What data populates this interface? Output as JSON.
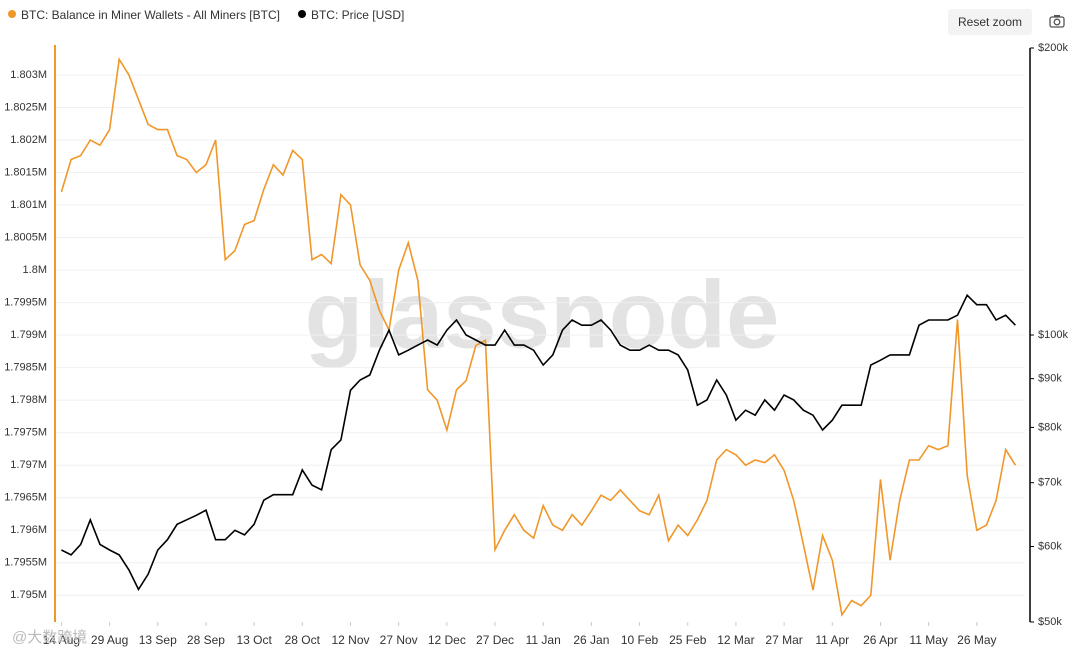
{
  "chart_data": {
    "type": "line",
    "legend": "top-left",
    "watermark": "glassnode",
    "overlay_text": "@大数跨境",
    "button": "Reset zoom",
    "x": [
      0,
      3,
      6,
      9,
      12,
      15,
      18,
      21,
      24,
      27,
      30,
      33,
      36,
      39,
      42,
      45,
      48,
      51,
      54,
      57,
      60,
      63,
      66,
      69,
      72,
      75,
      78,
      81,
      84,
      87,
      90,
      93,
      96,
      99,
      102,
      105,
      108,
      111,
      114,
      117,
      120,
      123,
      126,
      129,
      132,
      135,
      138,
      141,
      144,
      147,
      150,
      153,
      156,
      159,
      162,
      165,
      168,
      171,
      174,
      177,
      180,
      183,
      186,
      189,
      192,
      195,
      198,
      201,
      204,
      207,
      210,
      213,
      216,
      219,
      222,
      225,
      228,
      231,
      234,
      237,
      240,
      243,
      246,
      249,
      252,
      255,
      258,
      261,
      264,
      267,
      270,
      273,
      276,
      279,
      282,
      285,
      288,
      291,
      294,
      297
    ],
    "xlim": [
      -2,
      300
    ],
    "xticks": [
      {
        "value": 0,
        "label": "14 Aug"
      },
      {
        "value": 15,
        "label": "29 Aug"
      },
      {
        "value": 30,
        "label": "13 Sep"
      },
      {
        "value": 45,
        "label": "28 Sep"
      },
      {
        "value": 60,
        "label": "13 Oct"
      },
      {
        "value": 75,
        "label": "28 Oct"
      },
      {
        "value": 90,
        "label": "12 Nov"
      },
      {
        "value": 105,
        "label": "27 Nov"
      },
      {
        "value": 120,
        "label": "12 Dec"
      },
      {
        "value": 135,
        "label": "27 Dec"
      },
      {
        "value": 150,
        "label": "11 Jan"
      },
      {
        "value": 165,
        "label": "26 Jan"
      },
      {
        "value": 180,
        "label": "10 Feb"
      },
      {
        "value": 195,
        "label": "25 Feb"
      },
      {
        "value": 210,
        "label": "12 Mar"
      },
      {
        "value": 225,
        "label": "27 Mar"
      },
      {
        "value": 240,
        "label": "11 Apr"
      },
      {
        "value": 255,
        "label": "26 Apr"
      },
      {
        "value": 270,
        "label": "11 May"
      },
      {
        "value": 285,
        "label": "26 May"
      }
    ],
    "ylim": [
      1794590,
      1803460
    ],
    "yticks": [
      {
        "value": 1795000,
        "label": "1.795M"
      },
      {
        "value": 1795500,
        "label": "1.7955M"
      },
      {
        "value": 1796000,
        "label": "1.796M"
      },
      {
        "value": 1796500,
        "label": "1.7965M"
      },
      {
        "value": 1797000,
        "label": "1.797M"
      },
      {
        "value": 1797500,
        "label": "1.7975M"
      },
      {
        "value": 1798000,
        "label": "1.798M"
      },
      {
        "value": 1798500,
        "label": "1.7985M"
      },
      {
        "value": 1799000,
        "label": "1.799M"
      },
      {
        "value": 1799500,
        "label": "1.7995M"
      },
      {
        "value": 1800000,
        "label": "1.8M"
      },
      {
        "value": 1800500,
        "label": "1.8005M"
      },
      {
        "value": 1801000,
        "label": "1.801M"
      },
      {
        "value": 1801500,
        "label": "1.8015M"
      },
      {
        "value": 1802000,
        "label": "1.802M"
      },
      {
        "value": 1802500,
        "label": "1.8025M"
      },
      {
        "value": 1803000,
        "label": "1.803M"
      }
    ],
    "y2lim": [
      50000,
      200000
    ],
    "y2log": true,
    "y2ticks": [
      {
        "value": 50000,
        "label": "$50k"
      },
      {
        "value": 60000,
        "label": "$60k"
      },
      {
        "value": 70000,
        "label": "$70k"
      },
      {
        "value": 80000,
        "label": "$80k"
      },
      {
        "value": 90000,
        "label": "$90k"
      },
      {
        "value": 100000,
        "label": "$100k"
      },
      {
        "value": 200000,
        "label": "$200k"
      }
    ],
    "grid": true,
    "series": [
      {
        "name": "BTC: Balance in Miner Wallets - All Miners [BTC]",
        "color": "#f0972a",
        "values": [
          1801200,
          1801700,
          1801760,
          1802000,
          1801920,
          1802160,
          1803240,
          1803000,
          1802620,
          1802240,
          1802160,
          1802160,
          1801760,
          1801700,
          1801500,
          1801620,
          1802000,
          1800160,
          1800300,
          1800700,
          1800760,
          1801240,
          1801620,
          1801460,
          1801840,
          1801700,
          1800160,
          1800240,
          1800100,
          1801160,
          1801000,
          1800080,
          1799840,
          1799380,
          1799080,
          1800000,
          1800420,
          1799840,
          1798160,
          1798000,
          1797540,
          1798160,
          1798300,
          1798840,
          1798920,
          1795700,
          1796000,
          1796240,
          1796000,
          1795880,
          1796380,
          1796080,
          1796000,
          1796240,
          1796080,
          1796300,
          1796540,
          1796460,
          1796620,
          1796460,
          1796300,
          1796240,
          1796540,
          1795840,
          1796080,
          1795920,
          1796160,
          1796460,
          1797080,
          1797240,
          1797160,
          1797000,
          1797080,
          1797040,
          1797160,
          1796920,
          1796460,
          1795780,
          1795080,
          1795920,
          1795540,
          1794700,
          1794920,
          1794840,
          1795000,
          1796780,
          1795540,
          1796460,
          1797080,
          1797080,
          1797300,
          1797240,
          1797300,
          1799240,
          1796840,
          1796000,
          1796080,
          1796460,
          1797240,
          1797000
        ]
      },
      {
        "name": "BTC: Price [USD]",
        "color": "#000000",
        "axis": "y2",
        "values": [
          59500,
          58800,
          60300,
          64000,
          60300,
          59500,
          58800,
          56700,
          54100,
          56100,
          59500,
          61000,
          63300,
          64000,
          64700,
          65500,
          61000,
          61000,
          62400,
          61700,
          63300,
          67100,
          68000,
          68000,
          68000,
          72200,
          69600,
          68800,
          75800,
          77600,
          87500,
          89700,
          90800,
          96400,
          101200,
          95300,
          96400,
          97600,
          98800,
          97600,
          101200,
          103700,
          100000,
          98800,
          97600,
          97600,
          101200,
          97600,
          97600,
          96400,
          93000,
          95300,
          101200,
          103700,
          102400,
          102400,
          103700,
          101200,
          97600,
          96400,
          96400,
          97600,
          96400,
          96400,
          95300,
          91900,
          84400,
          85500,
          89700,
          86500,
          81400,
          83400,
          82400,
          85500,
          83400,
          86500,
          85500,
          83400,
          82400,
          79500,
          81400,
          84400,
          84400,
          84400,
          93000,
          94100,
          95300,
          95300,
          95300,
          102400,
          103700,
          103700,
          103700,
          104900,
          110100,
          107600,
          107600,
          103700,
          104900,
          102400
        ]
      }
    ]
  }
}
